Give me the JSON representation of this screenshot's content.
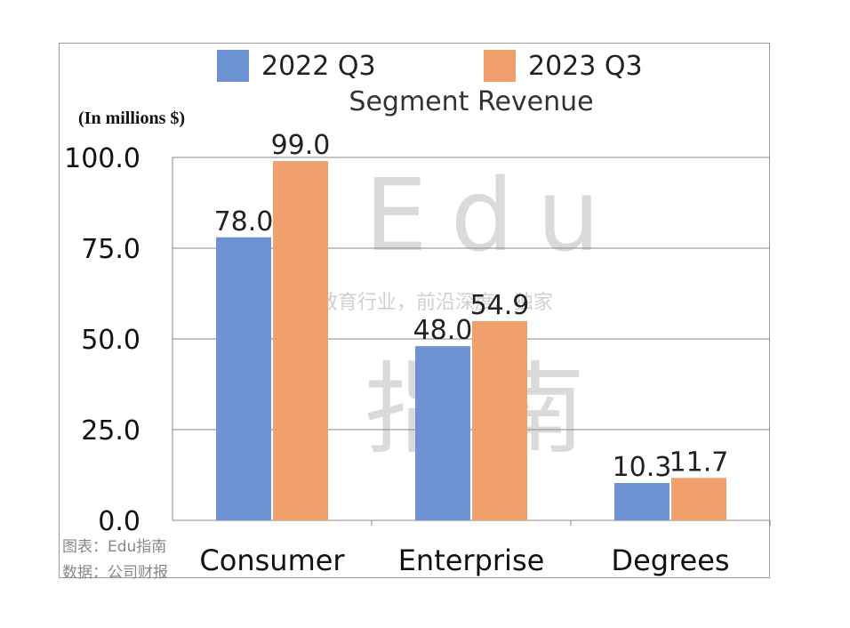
{
  "chart_data": {
    "type": "bar",
    "title": "Segment Revenue",
    "unit_label": "(In millions $)",
    "categories": [
      "Consumer",
      "Enterprise",
      "Degrees"
    ],
    "series": [
      {
        "name": "2022 Q3",
        "color": "#6e93d4",
        "values": [
          78.0,
          48.0,
          10.3
        ]
      },
      {
        "name": "2023 Q3",
        "color": "#f0a06a",
        "values": [
          99.0,
          54.9,
          11.7
        ]
      }
    ],
    "ylim": [
      0,
      100
    ],
    "yticks": [
      "0.0",
      "25.0",
      "50.0",
      "75.0",
      "100.0"
    ],
    "grid": true,
    "legend_position": "top"
  },
  "watermark": {
    "latin": "Edu",
    "cjk": "指南",
    "tagline": "教育行业，前沿深度、独家"
  },
  "footer": {
    "chart_credit": "图表：Edu指南",
    "data_source": "数据：公司财报"
  }
}
